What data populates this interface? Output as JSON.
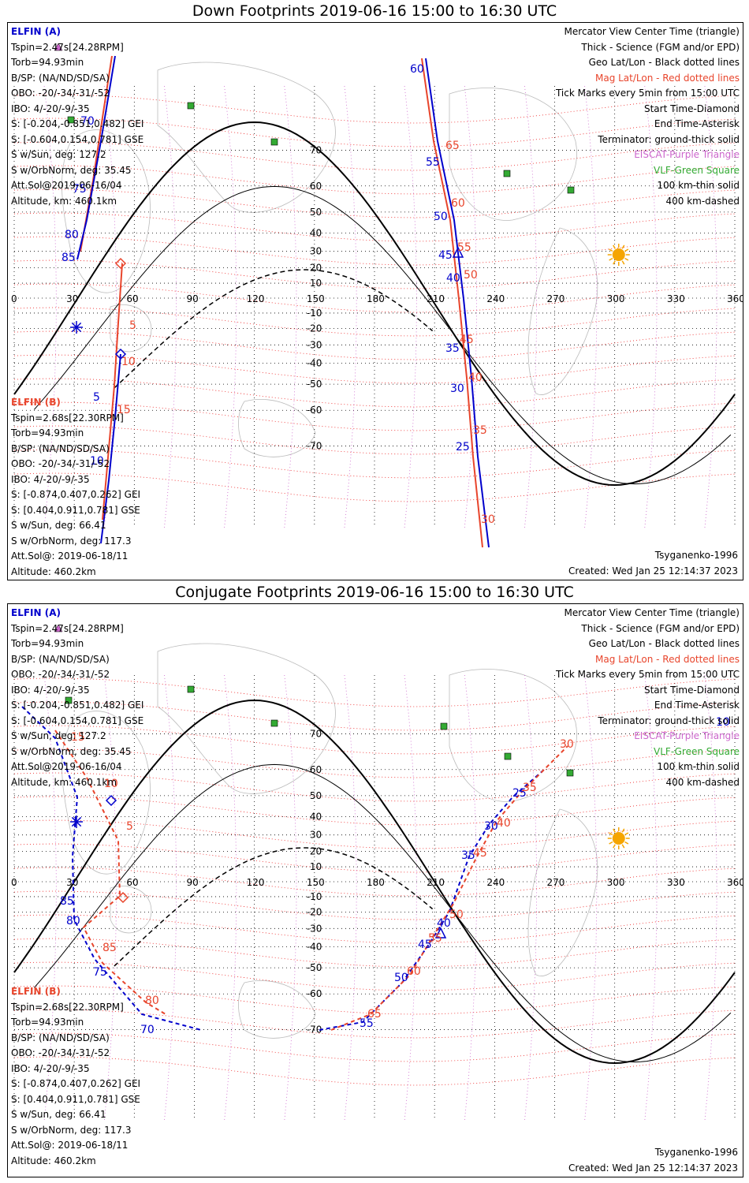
{
  "top": {
    "title": "Down Footprints 2019-06-16 15:00 to 16:30 UTC",
    "footer_model": "Tsyganenko-1996",
    "footer_created": "Created: Wed Jan 25 12:14:37 2023",
    "a_labels": [
      "60",
      "55",
      "50",
      "45",
      "40",
      "35",
      "30",
      "25"
    ],
    "a_red_labels": [
      "65",
      "60",
      "55",
      "50",
      "45",
      "40",
      "35",
      "30"
    ],
    "left_labels_blue": [
      "70",
      "75",
      "80",
      "85",
      "5",
      "10"
    ],
    "left_labels_red": [
      "5",
      "10",
      "15"
    ]
  },
  "bottom": {
    "title": "Conjugate Footprints 2019-06-16 15:00 to 16:30 UTC",
    "footer_model": "Tsyganenko-1996",
    "footer_created": "Created: Wed Jan 25 12:14:37 2023",
    "a_labels": [
      "25",
      "30",
      "35",
      "40",
      "45",
      "50",
      "55"
    ],
    "a_red_labels": [
      "30",
      "35",
      "40",
      "45",
      "50",
      "55",
      "60",
      "65"
    ],
    "left_labels_blue": [
      "85",
      "80",
      "75",
      "70"
    ],
    "left_labels_red": [
      "15",
      "10",
      "5",
      "85",
      "80"
    ],
    "extra_right": "10"
  },
  "info_a": {
    "name": "ELFIN (A)",
    "tspin": "Tspin=2.47s[24.28RPM]",
    "torb": "Torb=94.93min",
    "bsp": "B/SP: (NA/ND/SD/SA)",
    "obo": "OBO: -20/-34/-31/-52",
    "ibo": "IBO: 4/-20/-9/-35",
    "s_gei": "S: [-0.204,-0.851,0.482] GEI",
    "s_gse": "S: [-0.604,0.154,0.781] GSE",
    "s_sun": "S w/Sun, deg: 127.2",
    "s_orb": "S w/OrbNorm, deg: 35.45",
    "attsol": "Att.Sol@2019-06-16/04",
    "alt": "Altitude, km: 460.1km"
  },
  "info_b": {
    "name": "ELFIN (B)",
    "tspin": "Tspin=2.68s[22.30RPM]",
    "torb": "Torb=94.93min",
    "bsp": "B/SP: (NA/ND/SD/SA)",
    "obo": "OBO: -20/-34/-31/-52",
    "ibo": "IBO: 4/-20/-9/-35",
    "s_gei": "S: [-0.874,0.407,0.262] GEI",
    "s_gse": "S: [0.404,0.911,0.781] GSE",
    "s_sun": "S w/Sun, deg: 66.41",
    "s_orb": "S w/OrbNorm, deg: 117.3",
    "attsol": "Att.Sol@: 2019-06-18/11",
    "alt": "Altitude: 460.2km"
  },
  "legend": {
    "l1": "Mercator View Center Time (triangle)",
    "l2": "Thick - Science (FGM and/or EPD)",
    "l3": "Geo Lat/Lon - Black dotted lines",
    "l4": "Mag Lat/Lon - Red dotted lines",
    "l5": "Tick Marks every 5min from 15:00 UTC",
    "l6": "Start Time-Diamond",
    "l7": "End Time-Asterisk",
    "l8": "Terminator: ground-thick solid",
    "l9": "EISCAT-Purple Triangle",
    "l10": "VLF-Green Square",
    "l11": "100 km-thin solid",
    "l12": "400 km-dashed"
  },
  "axes": {
    "lon_ticks": [
      "0",
      "30",
      "60",
      "90",
      "120",
      "150",
      "180",
      "210",
      "240",
      "270",
      "300",
      "330",
      "360"
    ],
    "lat_ticks": [
      "70",
      "60",
      "50",
      "40",
      "30",
      "20",
      "10",
      "-10",
      "-20",
      "-30",
      "-40",
      "-50",
      "-60",
      "-70"
    ]
  },
  "colors": {
    "blue": "#0000cc",
    "red": "#e8452c",
    "purple": "#cc66cc",
    "green": "#33aa33",
    "sun": "#f5a500"
  },
  "icons": [
    "sun-icon",
    "eiscat-triangle-icon",
    "vlf-square-icon"
  ]
}
